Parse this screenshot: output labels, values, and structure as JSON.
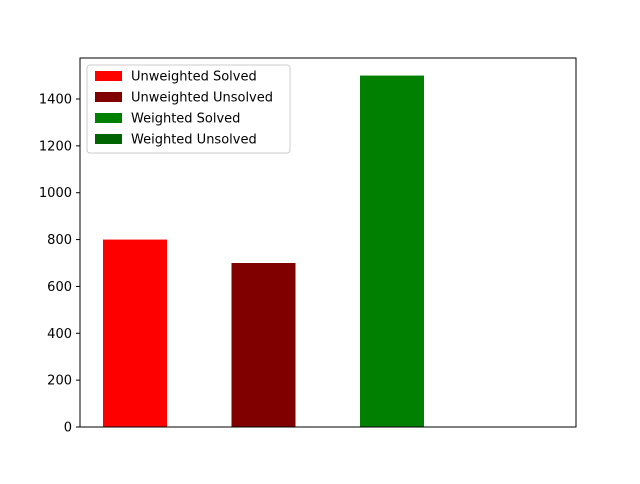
{
  "chart_data": {
    "type": "bar",
    "title": "",
    "xlabel": "",
    "ylabel": "",
    "ylim": [
      0,
      1575
    ],
    "yticks": [
      0,
      200,
      400,
      600,
      800,
      1000,
      1200,
      1400
    ],
    "ytick_labels": [
      "0",
      "200",
      "400",
      "600",
      "800",
      "1000",
      "1200",
      "1400"
    ],
    "xticks_shown": false,
    "grid": false,
    "legend_position": "top-left",
    "series": [
      {
        "name": "Unweighted Solved",
        "value": 800,
        "color": "#ff0000"
      },
      {
        "name": "Unweighted Unsolved",
        "value": 700,
        "color": "#800000"
      },
      {
        "name": "Weighted Solved",
        "value": 1500,
        "color": "#008000"
      },
      {
        "name": "Weighted Unsolved",
        "value": 0,
        "color": "#006400"
      }
    ]
  }
}
